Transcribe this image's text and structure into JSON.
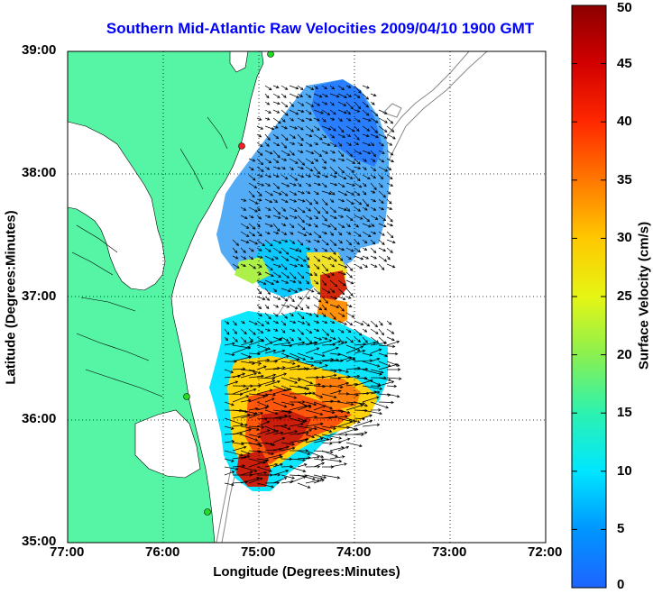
{
  "title": "Southern Mid-Atlantic Raw Velocities 2009/04/10 1900 GMT",
  "xlabel": "Longitude (Degrees:Minutes)",
  "ylabel": "Latitude (Degrees:Minutes)",
  "colorbar": {
    "label": "Surface Velocity (cm/s)",
    "ticks": [
      "0",
      "5",
      "10",
      "15",
      "20",
      "25",
      "30",
      "35",
      "40",
      "45",
      "50"
    ],
    "min": 0,
    "max": 50
  },
  "x_ticks": [
    "77:00",
    "76:00",
    "75:00",
    "74:00",
    "73:00",
    "72:00"
  ],
  "y_ticks": [
    "39:00",
    "38:00",
    "37:00",
    "36:00",
    "35:00"
  ],
  "colors": {
    "land": "#55f5a5",
    "water": "#ffffff",
    "title": "#0000ff",
    "station": "#22dd22",
    "station_active": "#ee2222"
  },
  "chart_data": {
    "type": "heatmap",
    "title": "Southern Mid-Atlantic Raw Velocities 2009/04/10 1900 GMT",
    "xlabel": "Longitude (Degrees:Minutes)",
    "ylabel": "Latitude (Degrees:Minutes)",
    "xlim": [
      -77,
      -72
    ],
    "ylim": [
      35,
      39
    ],
    "grid": true,
    "colorbar_range": [
      0,
      50
    ],
    "colorbar_label": "Surface Velocity (cm/s)"
  }
}
